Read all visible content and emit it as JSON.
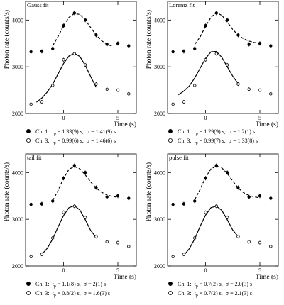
{
  "chart_data": [
    {
      "type": "scatter",
      "title": "Gauss fit",
      "xlabel": "Time (s)",
      "ylabel": "Photon rate (counts/s)",
      "x": [
        -3,
        -2,
        -1,
        0,
        1,
        2,
        3,
        4,
        5,
        6
      ],
      "xlim": [
        -3.5,
        6.7
      ],
      "ylim": [
        2000,
        4400
      ],
      "xticks": [
        0,
        5
      ],
      "yticks": [
        2000,
        3000,
        4000
      ],
      "series": [
        {
          "name": "Ch. 1:",
          "marker": "filled",
          "color": "#000000",
          "values": [
            3320,
            3330,
            3390,
            3880,
            4150,
            4000,
            3680,
            3480,
            3500,
            3450
          ],
          "errors": [
            45,
            45,
            45,
            45,
            45,
            45,
            45,
            45,
            45,
            45
          ],
          "fit": {
            "dashed": true,
            "x": [
              -1,
              -0.5,
              0,
              0.5,
              1,
              1.5,
              2,
              2.5,
              3,
              3.5,
              4,
              4.5
            ],
            "values": [
              3450,
              3650,
              3880,
              4060,
              4140,
              4120,
              4000,
              3840,
              3680,
              3560,
              3480,
              3440
            ]
          },
          "label": {
            "symbol": "t",
            "subscript": "p",
            "text": " = 1.33(9) s,  σ = 1.41(9) s"
          }
        },
        {
          "name": "Ch. 3:",
          "marker": "open",
          "color": "#000000",
          "values": [
            2200,
            2250,
            2600,
            3150,
            3280,
            3040,
            2630,
            2520,
            2500,
            2420
          ],
          "errors": [
            40,
            40,
            40,
            40,
            40,
            40,
            40,
            40,
            40,
            40
          ],
          "fit": {
            "dashed": false,
            "x": [
              -2.5,
              -2,
              -1.5,
              -1,
              -0.5,
              0,
              0.5,
              1,
              1.5,
              2,
              2.5,
              3
            ],
            "values": [
              2240,
              2330,
              2460,
              2630,
              2850,
              3070,
              3230,
              3290,
              3220,
              3030,
              2790,
              2560
            ]
          },
          "label": {
            "symbol": "t",
            "subscript": "p",
            "text": " = 0.99(6) s,  σ = 1.46(6) s"
          }
        }
      ]
    },
    {
      "type": "scatter",
      "title": "Lorentz fit",
      "xlabel": "Time (s)",
      "ylabel": "Photon rate (counts/s)",
      "x": [
        -3,
        -2,
        -1,
        0,
        1,
        2,
        3,
        4,
        5,
        6
      ],
      "xlim": [
        -3.5,
        6.7
      ],
      "ylim": [
        2000,
        4400
      ],
      "xticks": [
        0,
        5
      ],
      "yticks": [
        2000,
        3000,
        4000
      ],
      "series": [
        {
          "name": "Ch. 1:",
          "marker": "filled",
          "color": "#000000",
          "values": [
            3320,
            3330,
            3390,
            3880,
            4150,
            4000,
            3680,
            3480,
            3500,
            3450
          ],
          "errors": [
            45,
            45,
            45,
            45,
            45,
            45,
            45,
            45,
            45,
            45
          ],
          "fit": {
            "dashed": true,
            "x": [
              -1,
              -0.5,
              0,
              0.5,
              1,
              1.5,
              2,
              2.5,
              3,
              3.5,
              4,
              4.5,
              5
            ],
            "values": [
              3480,
              3640,
              3870,
              4060,
              4160,
              4100,
              3960,
              3800,
              3680,
              3600,
              3550,
              3520,
              3500
            ]
          },
          "label": {
            "symbol": "t",
            "subscript": "p",
            "text": " = 1.29(9) s,  σ = 1.2(1) s"
          }
        },
        {
          "name": "Ch. 3:",
          "marker": "open",
          "color": "#000000",
          "values": [
            2200,
            2250,
            2600,
            3150,
            3280,
            3040,
            2630,
            2520,
            2500,
            2420
          ],
          "errors": [
            40,
            40,
            40,
            40,
            40,
            40,
            40,
            40,
            40,
            40
          ],
          "fit": {
            "dashed": false,
            "x": [
              -2.5,
              -2,
              -1.5,
              -1,
              -0.5,
              0,
              0.5,
              1,
              1.5,
              2,
              2.5,
              3
            ],
            "values": [
              2400,
              2480,
              2590,
              2760,
              2970,
              3180,
              3320,
              3330,
              3200,
              3000,
              2800,
              2640
            ]
          },
          "label": {
            "symbol": "t",
            "subscript": "p",
            "text": " = 0.99(7) s,  σ = 1.33(8) s"
          }
        }
      ]
    },
    {
      "type": "scatter",
      "title": "tail fit",
      "xlabel": "Time (s)",
      "ylabel": "Photon rate (counts/s)",
      "x": [
        -3,
        -2,
        -1,
        0,
        1,
        2,
        3,
        4,
        5,
        6
      ],
      "xlim": [
        -3.5,
        6.7
      ],
      "ylim": [
        2000,
        4400
      ],
      "xticks": [
        0,
        5
      ],
      "yticks": [
        2000,
        3000,
        4000
      ],
      "series": [
        {
          "name": "Ch. 1:",
          "marker": "filled",
          "color": "#000000",
          "values": [
            3320,
            3330,
            3390,
            3880,
            4150,
            4000,
            3680,
            3480,
            3500,
            3450
          ],
          "errors": [
            45,
            45,
            45,
            45,
            45,
            45,
            45,
            45,
            45,
            45
          ],
          "fit": {
            "dashed": true,
            "x": [
              -1,
              -0.5,
              0,
              0.5,
              1,
              1.5,
              2,
              2.5,
              3,
              3.5,
              4,
              4.5,
              5
            ],
            "values": [
              3400,
              3620,
              3880,
              4070,
              4130,
              4080,
              3950,
              3800,
              3670,
              3580,
              3520,
              3490,
              3470
            ]
          },
          "label": {
            "symbol": "t",
            "subscript": "p",
            "text": " = 1.1(8) s,  σ = 2(1) s"
          }
        },
        {
          "name": "Ch. 3:",
          "marker": "open",
          "color": "#000000",
          "values": [
            2200,
            2250,
            2600,
            3150,
            3280,
            3040,
            2630,
            2520,
            2500,
            2420
          ],
          "errors": [
            40,
            40,
            40,
            40,
            40,
            40,
            40,
            40,
            40,
            40
          ],
          "fit": {
            "dashed": false,
            "x": [
              -2,
              -1.5,
              -1,
              -0.5,
              0,
              0.5,
              1,
              1.5,
              2,
              2.5,
              3
            ],
            "values": [
              2250,
              2380,
              2580,
              2840,
              3080,
              3250,
              3290,
              3200,
              2990,
              2760,
              2610
            ]
          },
          "label": {
            "symbol": "t",
            "subscript": "p",
            "text": " = 0.8(2) s,  σ = 1.6(3) s"
          }
        }
      ]
    },
    {
      "type": "scatter",
      "title": "pulse fit",
      "xlabel": "Time (s)",
      "ylabel": "Photon rate (counts/s)",
      "x": [
        -3,
        -2,
        -1,
        0,
        1,
        2,
        3,
        4,
        5,
        6
      ],
      "xlim": [
        -3.5,
        6.7
      ],
      "ylim": [
        2000,
        4400
      ],
      "xticks": [
        0,
        5
      ],
      "yticks": [
        2000,
        3000,
        4000
      ],
      "series": [
        {
          "name": "Ch. 1:",
          "marker": "filled",
          "color": "#000000",
          "values": [
            3320,
            3330,
            3390,
            3880,
            4150,
            4000,
            3680,
            3480,
            3500,
            3450
          ],
          "errors": [
            45,
            45,
            45,
            45,
            45,
            45,
            45,
            45,
            45,
            45
          ],
          "fit": {
            "dashed": true,
            "x": [
              -1,
              -0.5,
              0,
              0.5,
              1,
              1.5,
              2,
              2.5,
              3,
              3.5,
              4,
              4.5,
              5
            ],
            "values": [
              3420,
              3640,
              3900,
              4080,
              4140,
              4100,
              3980,
              3820,
              3670,
              3570,
              3510,
              3480,
              3460
            ]
          },
          "label": {
            "symbol": "t",
            "subscript": "p",
            "text": " = 0.7(2) s,  σ = 2.0(3) s"
          }
        },
        {
          "name": "Ch. 3:",
          "marker": "open",
          "color": "#000000",
          "values": [
            2200,
            2250,
            2600,
            3150,
            3280,
            3040,
            2630,
            2520,
            2500,
            2420
          ],
          "errors": [
            40,
            40,
            40,
            40,
            40,
            40,
            40,
            40,
            40,
            40
          ],
          "fit": {
            "dashed": false,
            "x": [
              -2,
              -1.5,
              -1,
              -0.5,
              0,
              0.5,
              1,
              1.5,
              2,
              2.5,
              3
            ],
            "values": [
              2230,
              2370,
              2580,
              2850,
              3090,
              3250,
              3280,
              3190,
              2990,
              2770,
              2630
            ]
          },
          "label": {
            "symbol": "t",
            "subscript": "p",
            "text": " = 0.7(2) s,  σ = 2.1(3) s"
          }
        }
      ]
    }
  ]
}
